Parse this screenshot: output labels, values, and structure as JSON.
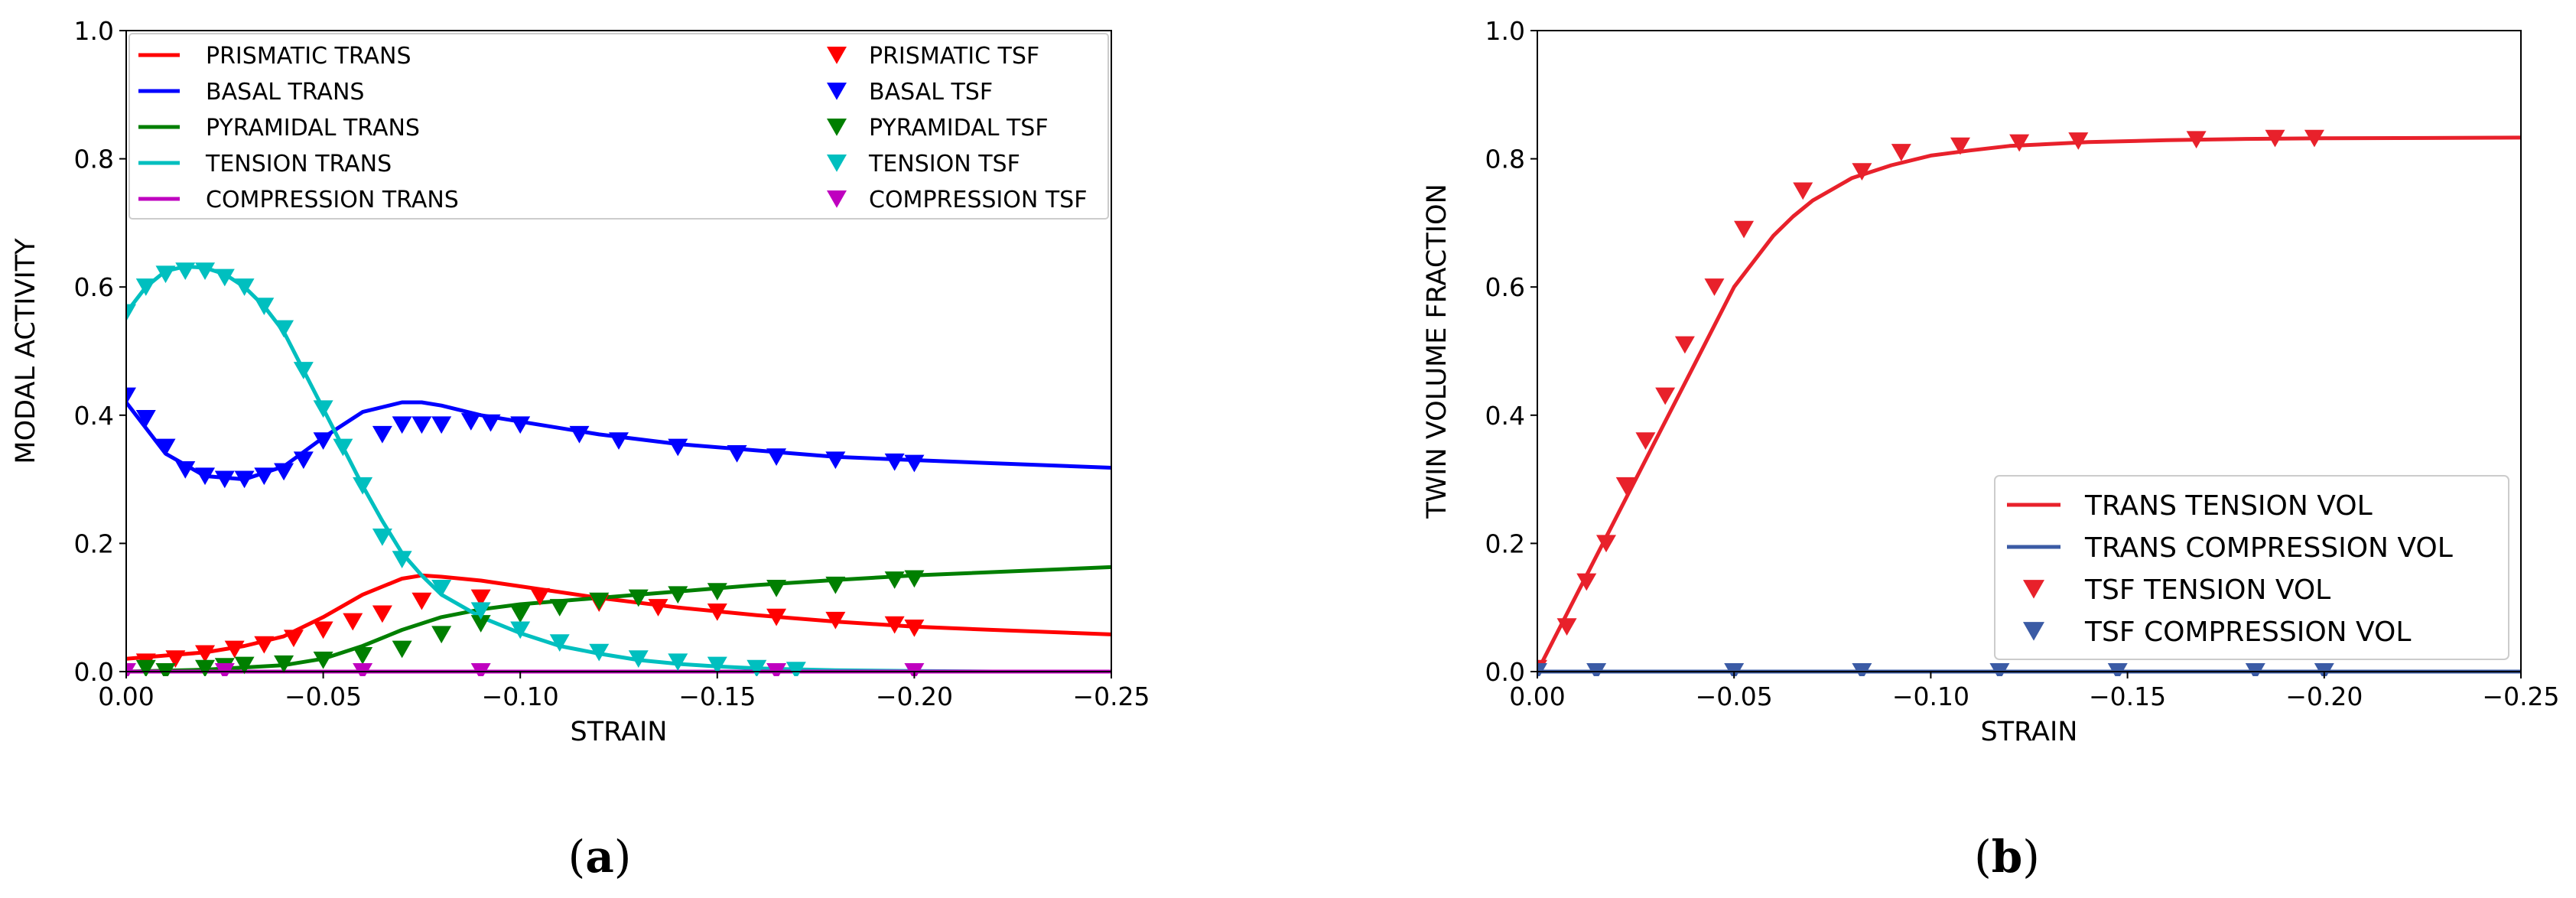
{
  "chart_data": [
    {
      "type": "line",
      "xlabel": "STRAIN",
      "ylabel": "MODAL ACTIVITY",
      "xlim": [
        0,
        -0.25
      ],
      "ylim": [
        0,
        1.0
      ],
      "xticks": [
        0.0,
        -0.05,
        -0.1,
        -0.15,
        -0.2,
        -0.25
      ],
      "xtick_labels": [
        "0.00",
        "−0.05",
        "−0.10",
        "−0.15",
        "−0.20",
        "−0.25"
      ],
      "yticks": [
        0.0,
        0.2,
        0.4,
        0.6,
        0.8,
        1.0
      ],
      "ytick_labels": [
        "0.0",
        "0.2",
        "0.4",
        "0.6",
        "0.8",
        "1.0"
      ],
      "legend_position": "top",
      "series": [
        {
          "name": "PRISMATIC TRANS",
          "kind": "line",
          "color": "#ff0000",
          "x": [
            0,
            -0.01,
            -0.02,
            -0.03,
            -0.04,
            -0.05,
            -0.06,
            -0.07,
            -0.075,
            -0.08,
            -0.09,
            -0.1,
            -0.12,
            -0.14,
            -0.16,
            -0.18,
            -0.2,
            -0.22,
            -0.25
          ],
          "y": [
            0.02,
            0.025,
            0.03,
            0.04,
            0.055,
            0.085,
            0.12,
            0.145,
            0.15,
            0.148,
            0.142,
            0.133,
            0.115,
            0.1,
            0.088,
            0.078,
            0.07,
            0.065,
            0.058
          ]
        },
        {
          "name": "BASAL TRANS",
          "kind": "line",
          "color": "#0000ff",
          "x": [
            0,
            -0.01,
            -0.02,
            -0.03,
            -0.04,
            -0.05,
            -0.06,
            -0.07,
            -0.075,
            -0.08,
            -0.09,
            -0.1,
            -0.12,
            -0.14,
            -0.16,
            -0.18,
            -0.2,
            -0.22,
            -0.25
          ],
          "y": [
            0.42,
            0.34,
            0.305,
            0.3,
            0.32,
            0.365,
            0.405,
            0.42,
            0.42,
            0.415,
            0.4,
            0.39,
            0.37,
            0.355,
            0.345,
            0.335,
            0.33,
            0.325,
            0.318
          ]
        },
        {
          "name": "PYRAMIDAL TRANS",
          "kind": "line",
          "color": "#007f00",
          "x": [
            0,
            -0.02,
            -0.04,
            -0.05,
            -0.06,
            -0.07,
            -0.08,
            -0.09,
            -0.1,
            -0.12,
            -0.14,
            -0.16,
            -0.18,
            -0.2,
            -0.25
          ],
          "y": [
            0.0,
            0.003,
            0.01,
            0.02,
            0.04,
            0.065,
            0.085,
            0.097,
            0.105,
            0.115,
            0.125,
            0.135,
            0.143,
            0.15,
            0.163
          ]
        },
        {
          "name": "TENSION TRANS",
          "kind": "line",
          "color": "#00bfbf",
          "x": [
            0,
            -0.005,
            -0.01,
            -0.015,
            -0.02,
            -0.025,
            -0.03,
            -0.035,
            -0.04,
            -0.045,
            -0.05,
            -0.055,
            -0.06,
            -0.065,
            -0.07,
            -0.075,
            -0.08,
            -0.09,
            -0.1,
            -0.11,
            -0.12,
            -0.13,
            -0.14,
            -0.15,
            -0.16,
            -0.18,
            -0.2,
            -0.22
          ],
          "y": [
            0.56,
            0.6,
            0.625,
            0.632,
            0.63,
            0.62,
            0.6,
            0.57,
            0.53,
            0.47,
            0.41,
            0.35,
            0.29,
            0.235,
            0.185,
            0.15,
            0.12,
            0.085,
            0.06,
            0.04,
            0.028,
            0.018,
            0.012,
            0.008,
            0.005,
            0.002,
            0.001,
            0.0
          ]
        },
        {
          "name": "COMPRESSION TRANS",
          "kind": "line",
          "color": "#bf00bf",
          "x": [
            0,
            -0.25
          ],
          "y": [
            0.0,
            0.0
          ]
        },
        {
          "name": "PRISMATIC TSF",
          "kind": "marker",
          "color": "#ff0000",
          "x": [
            -0.005,
            -0.0125,
            -0.02,
            -0.0275,
            -0.035,
            -0.0425,
            -0.05,
            -0.0575,
            -0.065,
            -0.075,
            -0.09,
            -0.105,
            -0.12,
            -0.135,
            -0.15,
            -0.165,
            -0.18,
            -0.195,
            -0.2
          ],
          "y": [
            0.015,
            0.02,
            0.028,
            0.035,
            0.042,
            0.052,
            0.065,
            0.078,
            0.09,
            0.11,
            0.115,
            0.117,
            0.107,
            0.1,
            0.093,
            0.085,
            0.08,
            0.073,
            0.068
          ]
        },
        {
          "name": "BASAL TSF",
          "kind": "marker",
          "color": "#0000ff",
          "x": [
            0,
            -0.005,
            -0.01,
            -0.015,
            -0.02,
            -0.025,
            -0.03,
            -0.035,
            -0.04,
            -0.045,
            -0.05,
            -0.065,
            -0.07,
            -0.075,
            -0.08,
            -0.0875,
            -0.0925,
            -0.1,
            -0.115,
            -0.125,
            -0.14,
            -0.155,
            -0.165,
            -0.18,
            -0.195,
            -0.2
          ],
          "y": [
            0.43,
            0.395,
            0.35,
            0.315,
            0.305,
            0.3,
            0.3,
            0.305,
            0.312,
            0.33,
            0.36,
            0.37,
            0.385,
            0.385,
            0.385,
            0.39,
            0.388,
            0.385,
            0.37,
            0.36,
            0.35,
            0.34,
            0.335,
            0.33,
            0.327,
            0.325
          ]
        },
        {
          "name": "PYRAMIDAL TSF",
          "kind": "marker",
          "color": "#007f00",
          "x": [
            -0.005,
            -0.01,
            -0.02,
            -0.025,
            -0.03,
            -0.04,
            -0.05,
            -0.06,
            -0.07,
            -0.08,
            -0.09,
            -0.1,
            -0.11,
            -0.12,
            -0.13,
            -0.14,
            -0.15,
            -0.165,
            -0.18,
            -0.195,
            -0.2
          ],
          "y": [
            0.005,
            0.0,
            0.005,
            0.008,
            0.01,
            0.012,
            0.018,
            0.025,
            0.035,
            0.058,
            0.075,
            0.09,
            0.1,
            0.11,
            0.115,
            0.12,
            0.125,
            0.13,
            0.135,
            0.143,
            0.145
          ]
        },
        {
          "name": "TENSION TSF",
          "kind": "marker",
          "color": "#00bfbf",
          "x": [
            0,
            -0.005,
            -0.01,
            -0.015,
            -0.02,
            -0.025,
            -0.03,
            -0.035,
            -0.04,
            -0.045,
            -0.05,
            -0.055,
            -0.06,
            -0.065,
            -0.07,
            -0.08,
            -0.09,
            -0.1,
            -0.11,
            -0.12,
            -0.13,
            -0.14,
            -0.15,
            -0.16,
            -0.17
          ],
          "y": [
            0.56,
            0.6,
            0.62,
            0.625,
            0.625,
            0.615,
            0.6,
            0.57,
            0.535,
            0.47,
            0.41,
            0.35,
            0.29,
            0.21,
            0.175,
            0.13,
            0.095,
            0.065,
            0.045,
            0.03,
            0.02,
            0.015,
            0.01,
            0.005,
            0.002
          ]
        },
        {
          "name": "COMPRESSION TSF",
          "kind": "marker",
          "color": "#bf00bf",
          "x": [
            0,
            -0.025,
            -0.06,
            -0.09,
            -0.165,
            -0.2
          ],
          "y": [
            0.0,
            0.0,
            0.0,
            0.0,
            0.0,
            0.0
          ]
        }
      ]
    },
    {
      "type": "line",
      "xlabel": "STRAIN",
      "ylabel": "TWIN VOLUME FRACTION",
      "xlim": [
        0,
        -0.25
      ],
      "ylim": [
        0,
        1.0
      ],
      "xticks": [
        0.0,
        -0.05,
        -0.1,
        -0.15,
        -0.2,
        -0.25
      ],
      "xtick_labels": [
        "0.00",
        "−0.05",
        "−0.10",
        "−0.15",
        "−0.20",
        "−0.25"
      ],
      "yticks": [
        0.0,
        0.2,
        0.4,
        0.6,
        0.8,
        1.0
      ],
      "ytick_labels": [
        "0.0",
        "0.2",
        "0.4",
        "0.6",
        "0.8",
        "1.0"
      ],
      "legend_position": "lower-right",
      "series": [
        {
          "name": "TRANS TENSION VOL",
          "kind": "line",
          "color": "#e8212b",
          "x": [
            0,
            -0.01,
            -0.02,
            -0.03,
            -0.04,
            -0.05,
            -0.06,
            -0.065,
            -0.07,
            -0.08,
            -0.09,
            -0.1,
            -0.11,
            -0.12,
            -0.14,
            -0.16,
            -0.18,
            -0.2,
            -0.25
          ],
          "y": [
            0.0,
            0.12,
            0.24,
            0.36,
            0.48,
            0.6,
            0.68,
            0.71,
            0.735,
            0.77,
            0.79,
            0.805,
            0.813,
            0.82,
            0.826,
            0.829,
            0.831,
            0.832,
            0.833
          ]
        },
        {
          "name": "TRANS COMPRESSION VOL",
          "kind": "line",
          "color": "#3b5ba5",
          "x": [
            0,
            -0.25
          ],
          "y": [
            0.0,
            0.0
          ]
        },
        {
          "name": "TSF TENSION VOL",
          "kind": "marker",
          "color": "#e8212b",
          "x": [
            0,
            -0.0075,
            -0.0125,
            -0.0175,
            -0.0225,
            -0.0275,
            -0.0325,
            -0.0375,
            -0.045,
            -0.0525,
            -0.0675,
            -0.0825,
            -0.0925,
            -0.1075,
            -0.1225,
            -0.1375,
            -0.1675,
            -0.1875,
            -0.1975
          ],
          "y": [
            0.005,
            0.07,
            0.14,
            0.2,
            0.29,
            0.36,
            0.43,
            0.51,
            0.6,
            0.69,
            0.75,
            0.78,
            0.81,
            0.82,
            0.825,
            0.828,
            0.83,
            0.832,
            0.832
          ]
        },
        {
          "name": "TSF COMPRESSION VOL",
          "kind": "marker",
          "color": "#3b5ba5",
          "x": [
            0,
            -0.015,
            -0.05,
            -0.0825,
            -0.1175,
            -0.1475,
            -0.1825,
            -0.2
          ],
          "y": [
            0.0,
            0.0,
            0.0,
            0.0,
            0.0,
            0.0,
            0.0,
            0.0
          ]
        }
      ]
    }
  ],
  "captions": {
    "a_open": "(",
    "a_letter": "a",
    "a_close": ")",
    "b_open": "(",
    "b_letter": "b",
    "b_close": ")"
  }
}
